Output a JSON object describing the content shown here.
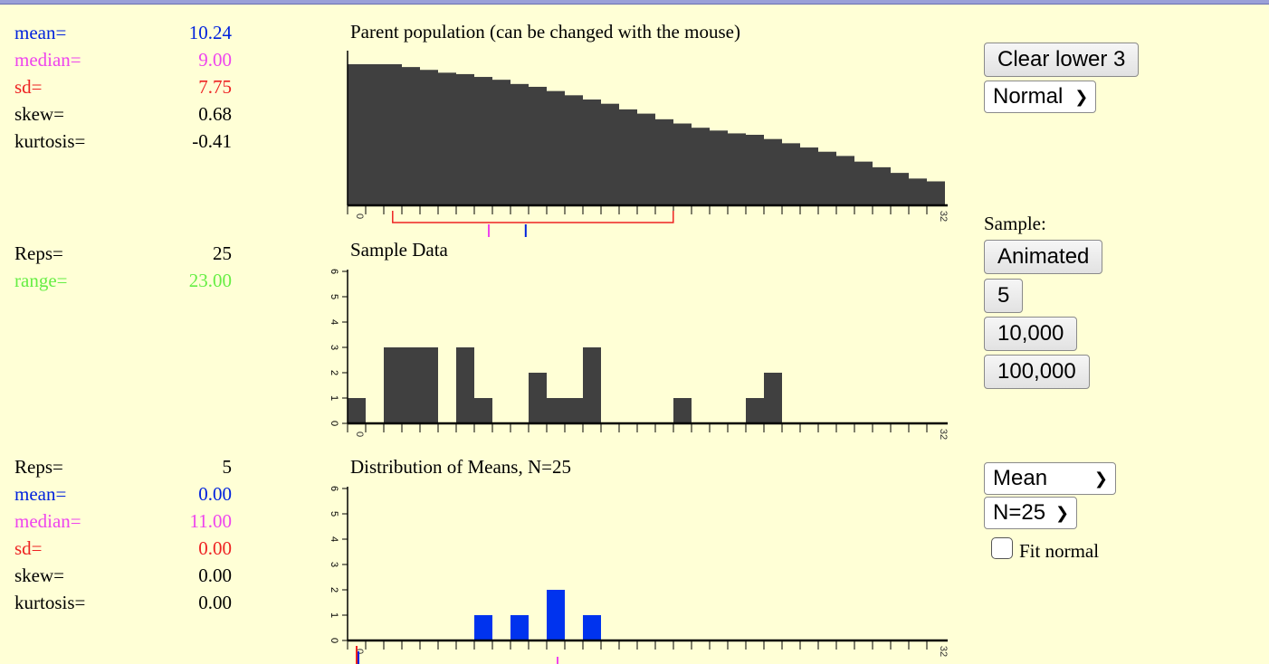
{
  "colors": {
    "background": "#ffffd6",
    "bar_dark": "#404040",
    "bar_blue": "#0033ee",
    "mean": "#0022dd",
    "median": "#ee44ee",
    "sd": "#ee2222",
    "range": "#66ee44",
    "text": "#000000"
  },
  "parent_stats": [
    {
      "label": "mean=",
      "value": "10.24",
      "color": "#0022dd"
    },
    {
      "label": "median=",
      "value": "9.00",
      "color": "#ee44ee"
    },
    {
      "label": "sd=",
      "value": "7.75",
      "color": "#ee2222"
    },
    {
      "label": "skew=",
      "value": "0.68",
      "color": "#000000"
    },
    {
      "label": "kurtosis=",
      "value": "-0.41",
      "color": "#000000"
    }
  ],
  "sample_stats": [
    {
      "label": "Reps=",
      "value": "25",
      "color": "#000000"
    },
    {
      "label": "range=",
      "value": "23.00",
      "color": "#66ee44"
    }
  ],
  "means_stats": [
    {
      "label": "Reps=",
      "value": "5",
      "color": "#000000"
    },
    {
      "label": "mean=",
      "value": "0.00",
      "color": "#0022dd"
    },
    {
      "label": "median=",
      "value": "11.00",
      "color": "#ee44ee"
    },
    {
      "label": "sd=",
      "value": "0.00",
      "color": "#ee2222"
    },
    {
      "label": "skew=",
      "value": "0.00",
      "color": "#000000"
    },
    {
      "label": "kurtosis=",
      "value": "0.00",
      "color": "#000000"
    }
  ],
  "titles": {
    "parent": "Parent population (can be changed with the mouse)",
    "sample": "Sample Data",
    "means": "Distribution of Means, N=25"
  },
  "controls": {
    "clear_button": "Clear lower 3",
    "distribution_select": "Normal",
    "sample_label": "Sample:",
    "animated_button": "Animated",
    "five_button": "5",
    "ten_thousand_button": "10,000",
    "hundred_thousand_button": "100,000",
    "statistic_select": "Mean",
    "n_select": "N=25",
    "fit_normal_label": "Fit normal",
    "fit_normal_checked": false
  },
  "chart_data": [
    {
      "type": "bar",
      "x_min_label": "0",
      "x_max_label": "32",
      "xlim": [
        0,
        32
      ],
      "ylim": [
        0,
        1
      ],
      "values": [
        1.0,
        1.0,
        1.0,
        0.98,
        0.96,
        0.94,
        0.93,
        0.91,
        0.89,
        0.86,
        0.84,
        0.81,
        0.78,
        0.75,
        0.72,
        0.68,
        0.65,
        0.61,
        0.58,
        0.55,
        0.53,
        0.51,
        0.5,
        0.47,
        0.44,
        0.41,
        0.38,
        0.35,
        0.31,
        0.27,
        0.23,
        0.19,
        0.17
      ],
      "mean": 10.24,
      "median": 9.0,
      "sd": 7.75,
      "sd_bracket": [
        2.49,
        17.99
      ]
    },
    {
      "type": "bar",
      "x_min_label": "0",
      "x_max_label": "32",
      "xlim": [
        0,
        32
      ],
      "ylim": [
        0,
        6
      ],
      "y_ticks": [
        "0",
        "1",
        "2",
        "3",
        "4",
        "5",
        "6"
      ],
      "values": [
        1,
        0,
        3,
        3,
        3,
        0,
        3,
        1,
        0,
        0,
        2,
        1,
        1,
        3,
        0,
        0,
        0,
        0,
        1,
        0,
        0,
        0,
        1,
        2,
        0,
        0,
        0,
        0,
        0,
        0,
        0,
        0
      ]
    },
    {
      "type": "bar",
      "x_min_label": "0",
      "x_max_label": "32",
      "xlim": [
        0,
        32
      ],
      "ylim": [
        0,
        6
      ],
      "y_ticks": [
        "0",
        "1",
        "2",
        "3",
        "4",
        "5",
        "6"
      ],
      "values": [
        0,
        0,
        0,
        0,
        0,
        0,
        0,
        1,
        0,
        1,
        0,
        2,
        0,
        1,
        0,
        0,
        0,
        0,
        0,
        0,
        0,
        0,
        0,
        0,
        0,
        0,
        0,
        0,
        0,
        0,
        0,
        0
      ],
      "median": 11.0,
      "mean": 0.0
    }
  ]
}
